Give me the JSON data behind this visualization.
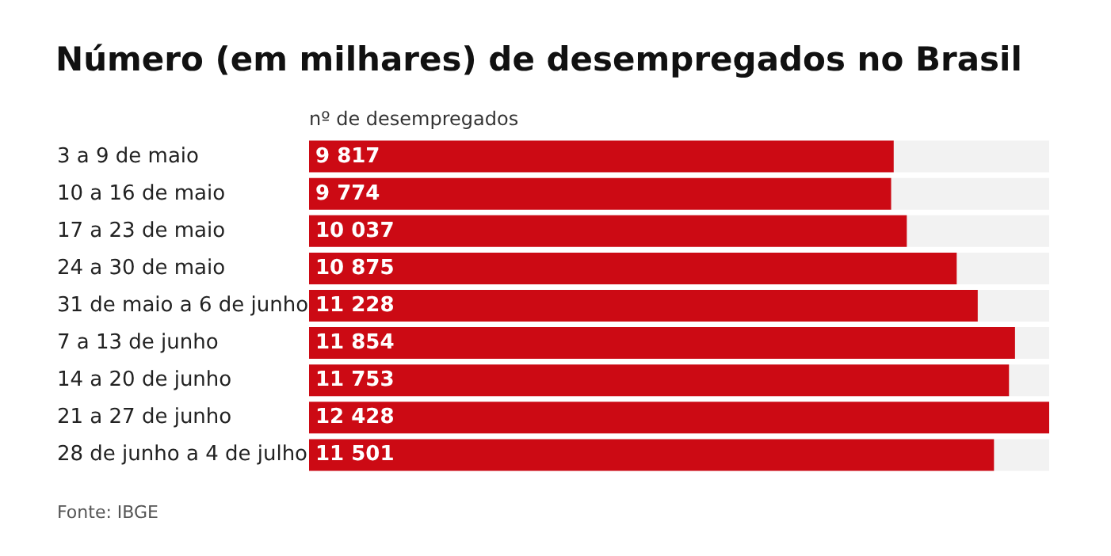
{
  "chart_data": {
    "type": "bar",
    "orientation": "horizontal",
    "title": "Número (em milhares) de desempregados no Brasil",
    "subtitle": "nº de desempregados",
    "annotations": [
      "Fonte: IBGE"
    ],
    "categories": [
      "3 a 9 de maio",
      "10 a 16 de maio",
      "17 a 23 de maio",
      "24 a 30 de maio",
      "31 de maio a 6 de junho",
      "7 a 13 de junho",
      "14 a 20 de junho",
      "21 a 27 de junho",
      "28 de junho a 4 de julho"
    ],
    "values": [
      9817,
      9774,
      10037,
      10875,
      11228,
      11854,
      11753,
      12428,
      11501
    ],
    "value_labels": [
      "9 817",
      "9 774",
      "10 037",
      "10 875",
      "11 228",
      "11 854",
      "11 753",
      "12 428",
      "11 501"
    ],
    "color": "#cc0a14"
  }
}
